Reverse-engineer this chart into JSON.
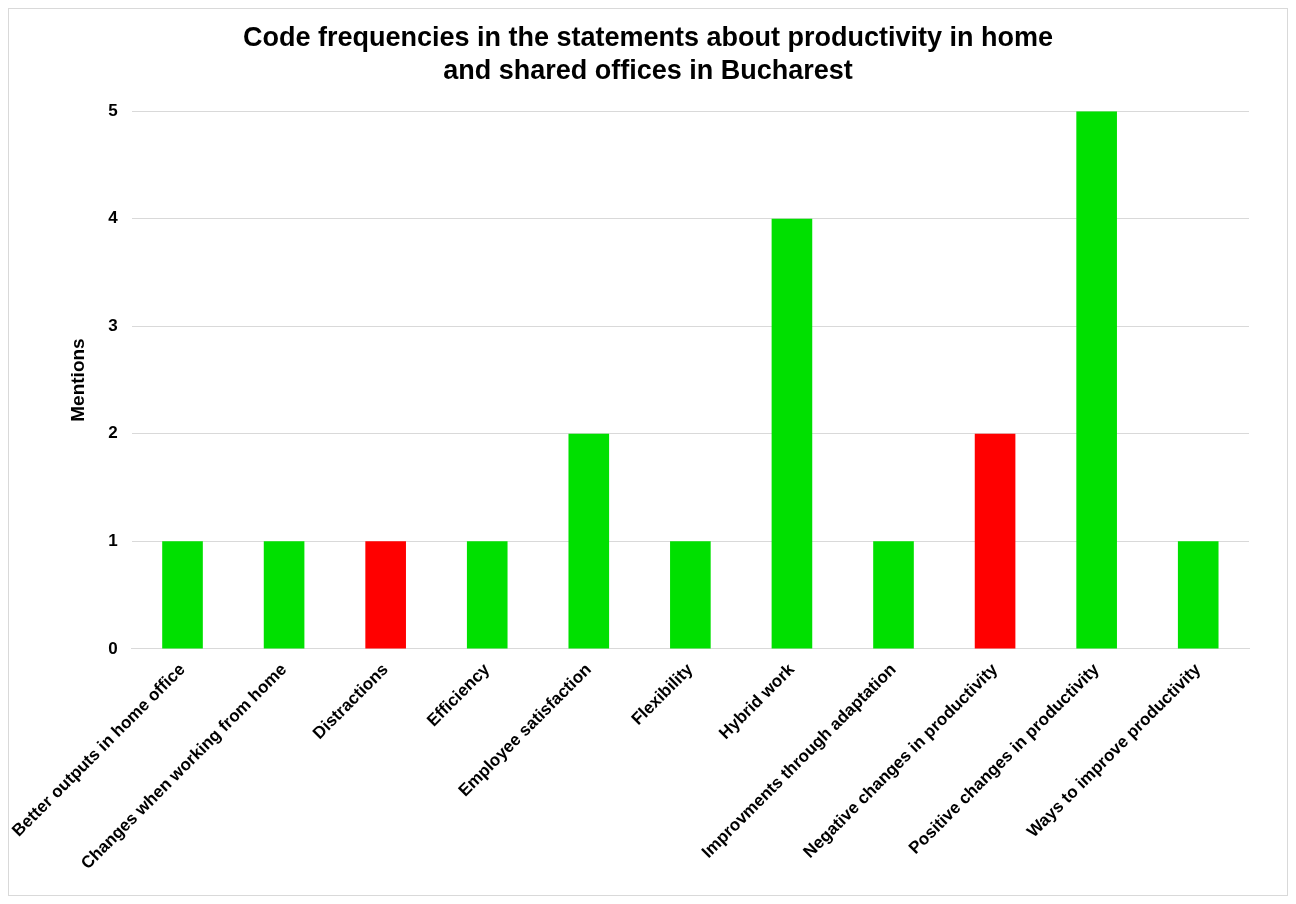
{
  "chart_data": {
    "type": "bar",
    "title": "Code frequencies in the statements about productivity in home and shared offices in Bucharest",
    "ylabel": "Mentions",
    "categories": [
      "Better outputs in home office",
      "Changes when working from home",
      "Distractions",
      "Efficiency",
      "Employee satisfaction",
      "Flexibility",
      "Hybrid work",
      "Improvments through adaptation",
      "Negative changes in productivity",
      "Positive changes in productivity",
      "Ways to improve productivity"
    ],
    "values": [
      1,
      1,
      1,
      1,
      2,
      1,
      4,
      1,
      2,
      5,
      1
    ],
    "colors": [
      "#00e000",
      "#00e000",
      "#ff0000",
      "#00e000",
      "#00e000",
      "#00e000",
      "#00e000",
      "#00e000",
      "#ff0000",
      "#00e000",
      "#00e000"
    ],
    "ylim": [
      0,
      5
    ],
    "yticks": [
      0,
      1,
      2,
      3,
      4,
      5
    ],
    "grid": "y",
    "legend": false
  }
}
